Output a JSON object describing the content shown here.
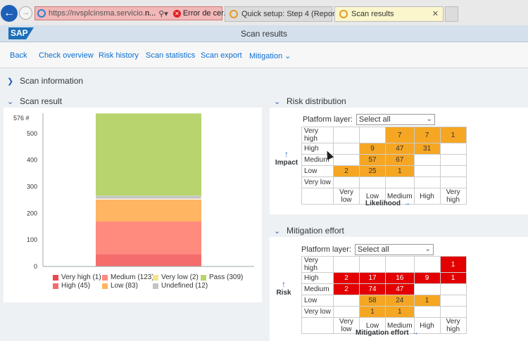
{
  "browser": {
    "url_prefix": "https://nvsplcinsma.servicio.",
    "url_bold": "n...",
    "cert_error": "Error de cer...",
    "tabs": [
      {
        "label": "Quick setup: Step 4  (Report)"
      },
      {
        "label": "Scan results"
      }
    ]
  },
  "shell": {
    "logo": "SAP",
    "title": "Scan results"
  },
  "toolbar": {
    "items": [
      "Back",
      "Check overview",
      "Risk history",
      "Scan statistics",
      "Scan export",
      "Mitigation"
    ]
  },
  "scan_information": {
    "title": "Scan information"
  },
  "scan_result": {
    "title": "Scan result",
    "ytitle": "576 #",
    "ticks": [
      "500",
      "400",
      "300",
      "200",
      "100",
      "0"
    ],
    "legend": [
      {
        "label": "Very high (1)",
        "color": "#f0474e"
      },
      {
        "label": "Medium (123)",
        "color": "#ff8a7e"
      },
      {
        "label": "Very low (2)",
        "color": "#f4e48e"
      },
      {
        "label": "Pass (309)",
        "color": "#b8d46f"
      },
      {
        "label": "High (45)",
        "color": "#f56c6c"
      },
      {
        "label": "Low (83)",
        "color": "#ffb561"
      },
      {
        "label": "Undefined (12)",
        "color": "#c5c5c5"
      }
    ]
  },
  "chart_data": {
    "type": "bar",
    "stacked": true,
    "categories": [
      ""
    ],
    "ylim": [
      0,
      576
    ],
    "ylabel": "576 #",
    "series": [
      {
        "name": "Very high",
        "values": [
          1
        ]
      },
      {
        "name": "High",
        "values": [
          45
        ]
      },
      {
        "name": "Medium",
        "values": [
          123
        ]
      },
      {
        "name": "Low",
        "values": [
          83
        ]
      },
      {
        "name": "Very low",
        "values": [
          2
        ]
      },
      {
        "name": "Undefined",
        "values": [
          12
        ]
      },
      {
        "name": "Pass",
        "values": [
          309
        ]
      }
    ]
  },
  "risk_distribution": {
    "title": "Risk distribution",
    "layer_label": "Platform layer:",
    "layer_value": "Select all",
    "y_axis": "Impact",
    "x_axis": "Likelihood",
    "rows": [
      {
        "label": "Very high",
        "cells": [
          "",
          "",
          "7",
          "7",
          "1"
        ]
      },
      {
        "label": "High",
        "cells": [
          "",
          "9",
          "47",
          "31",
          ""
        ]
      },
      {
        "label": "Medium",
        "cells": [
          "",
          "57",
          "67",
          "",
          ""
        ]
      },
      {
        "label": "Low",
        "cells": [
          "2",
          "25",
          "1",
          "",
          ""
        ]
      },
      {
        "label": "Very low",
        "cells": [
          "",
          "",
          "",
          "",
          ""
        ]
      }
    ],
    "cols": [
      "Very low",
      "Low",
      "Medium",
      "High",
      "Very high"
    ]
  },
  "mitigation_effort": {
    "title": "Mitigation effort",
    "layer_label": "Platform layer:",
    "layer_value": "Select all",
    "y_axis": "Risk",
    "x_axis": "Mitigation effort",
    "rows": [
      {
        "label": "Very high",
        "cells": [
          "",
          "",
          "",
          "",
          "1"
        ]
      },
      {
        "label": "High",
        "cells": [
          "2",
          "17",
          "16",
          "9",
          "1"
        ]
      },
      {
        "label": "Medium",
        "cells": [
          "2",
          "74",
          "47",
          "",
          ""
        ]
      },
      {
        "label": "Low",
        "cells": [
          "",
          "58",
          "24",
          "1",
          ""
        ]
      },
      {
        "label": "Very low",
        "cells": [
          "",
          "1",
          "1",
          "",
          ""
        ]
      }
    ],
    "cols": [
      "Very low",
      "Low",
      "Medium",
      "High",
      "Very high"
    ]
  }
}
